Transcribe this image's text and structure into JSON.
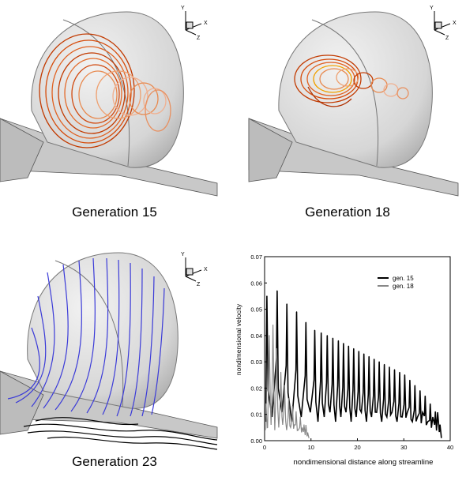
{
  "panels": [
    {
      "caption": "Generation 15",
      "axis_labels": {
        "y": "Y",
        "x": "X",
        "z": "Z"
      }
    },
    {
      "caption": "Generation 18",
      "axis_labels": {
        "y": "Y",
        "x": "X",
        "z": "Z"
      }
    },
    {
      "caption": "Generation 23",
      "axis_labels": {
        "y": "Y",
        "x": "X",
        "z": "Z"
      }
    }
  ],
  "chart_data": {
    "type": "line",
    "xlabel": "nondimensional distance along streamline",
    "ylabel": "nondimensional velocity",
    "xlim": [
      0,
      40
    ],
    "ylim": [
      0,
      0.07
    ],
    "xticks": [
      0,
      10,
      20,
      30,
      40
    ],
    "yticks": [
      0.0,
      0.01,
      0.02,
      0.03,
      0.04,
      0.05,
      0.06,
      0.07
    ],
    "xtick_labels": [
      "0",
      "10",
      "20",
      "30",
      "40"
    ],
    "ytick_labels": [
      "0.00",
      "0.01",
      "0.02",
      "0.03",
      "0.04",
      "0.05",
      "0.06",
      "0.07"
    ],
    "legend_position": "top-right",
    "series": [
      {
        "name": "gen. 15",
        "color": "#000000",
        "peaks_x": [
          0.5,
          2.7,
          4.8,
          6.9,
          8.9,
          10.8,
          12.2,
          13.5,
          14.7,
          15.9,
          17.0,
          18.1,
          19.2,
          20.3,
          21.4,
          22.5,
          23.6,
          24.7,
          25.8,
          26.9,
          28.0,
          29.1,
          30.2,
          31.3,
          32.4,
          33.5,
          34.6,
          35.7,
          36.8,
          37.8
        ],
        "peaks_y": [
          0.055,
          0.057,
          0.052,
          0.049,
          0.045,
          0.042,
          0.041,
          0.04,
          0.039,
          0.038,
          0.037,
          0.036,
          0.035,
          0.034,
          0.033,
          0.032,
          0.031,
          0.03,
          0.029,
          0.028,
          0.027,
          0.026,
          0.025,
          0.023,
          0.021,
          0.019,
          0.017,
          0.014,
          0.011,
          0.006
        ],
        "trough_y": 0.009
      },
      {
        "name": "gen. 18",
        "color": "#888888",
        "peaks_x": [
          0.3,
          1.0,
          1.8,
          2.6,
          3.5,
          4.3,
          5.2,
          6.0,
          6.8,
          7.7,
          8.5,
          9.3
        ],
        "peaks_y": [
          0.014,
          0.04,
          0.044,
          0.035,
          0.026,
          0.021,
          0.016,
          0.013,
          0.011,
          0.009,
          0.006,
          0.003
        ],
        "trough_y": 0.005
      }
    ]
  }
}
